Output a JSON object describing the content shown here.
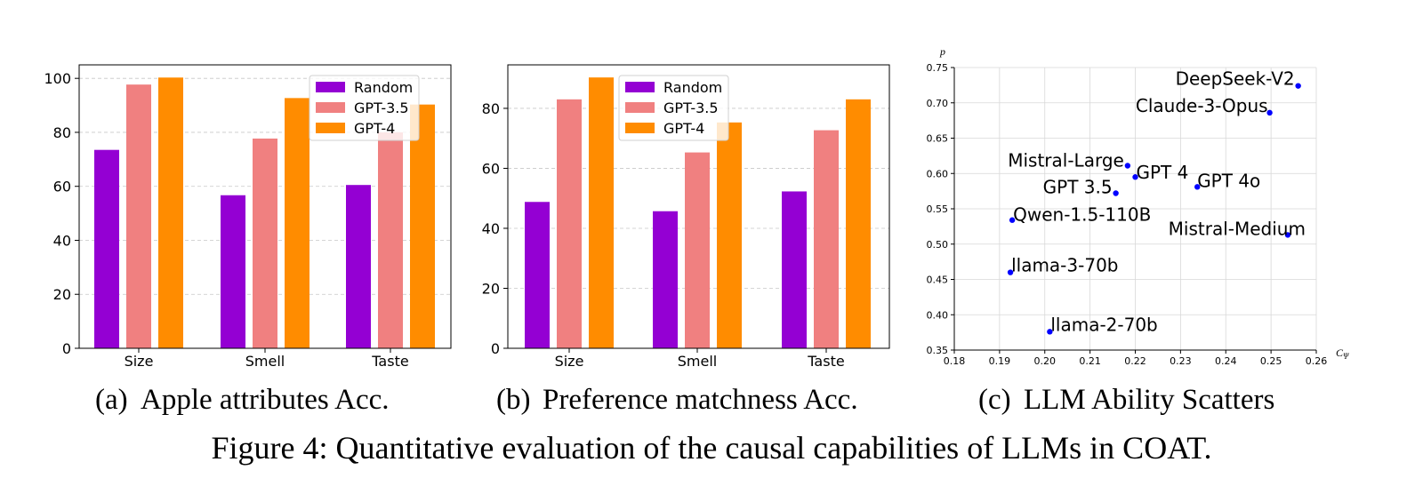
{
  "chart_data": [
    {
      "type": "bar",
      "panel_label": "(a)",
      "caption": "Apple attributes Acc.",
      "categories": [
        "Size",
        "Smell",
        "Taste"
      ],
      "series": [
        {
          "name": "Random",
          "color": "#9400d3",
          "values": [
            73.5,
            56.7,
            60.5
          ]
        },
        {
          "name": "GPT-3.5",
          "color": "#f08080",
          "values": [
            97.7,
            77.7,
            80.0
          ]
        },
        {
          "name": "GPT-4",
          "color": "#ff8c00",
          "values": [
            100.3,
            92.7,
            90.3
          ]
        }
      ],
      "yticks": [
        "0",
        "20",
        "40",
        "60",
        "80",
        "100"
      ],
      "ylim": [
        0,
        105
      ],
      "legend": "top-right",
      "grid": "y-dashed"
    },
    {
      "type": "bar",
      "panel_label": "(b)",
      "caption": "Preference matchness Acc.",
      "categories": [
        "Size",
        "Smell",
        "Taste"
      ],
      "series": [
        {
          "name": "Random",
          "color": "#9400d3",
          "values": [
            48.8,
            45.7,
            52.3
          ]
        },
        {
          "name": "GPT-3.5",
          "color": "#f08080",
          "values": [
            83.0,
            65.3,
            72.7
          ]
        },
        {
          "name": "GPT-4",
          "color": "#ff8c00",
          "values": [
            90.3,
            75.3,
            83.0
          ]
        }
      ],
      "yticks": [
        "0",
        "20",
        "40",
        "60",
        "80"
      ],
      "ylim": [
        0,
        94.5
      ],
      "legend": "top-center",
      "grid": "y-dashed"
    },
    {
      "type": "scatter",
      "panel_label": "(c)",
      "caption": "LLM Ability Scatters",
      "xlabel": "C",
      "xlabel_sub": "Ψ",
      "ylabel": "p",
      "xlim": [
        0.18,
        0.26
      ],
      "ylim": [
        0.35,
        0.75
      ],
      "xticks": [
        "0.18",
        "0.19",
        "0.20",
        "0.21",
        "0.22",
        "0.23",
        "0.24",
        "0.25",
        "0.26"
      ],
      "yticks": [
        "0.35",
        "0.40",
        "0.45",
        "0.50",
        "0.55",
        "0.60",
        "0.65",
        "0.70",
        "0.75"
      ],
      "point_color": "#0000ff",
      "points": [
        {
          "label": "DeepSeek-V2",
          "x": 0.256,
          "y": 0.724
        },
        {
          "label": "Claude-3-Opus",
          "x": 0.2497,
          "y": 0.686
        },
        {
          "label": "Mistral-Large",
          "x": 0.2183,
          "y": 0.611
        },
        {
          "label": "GPT 4",
          "x": 0.22,
          "y": 0.595
        },
        {
          "label": "GPT 3.5",
          "x": 0.2157,
          "y": 0.572
        },
        {
          "label": "GPT 4o",
          "x": 0.2337,
          "y": 0.581
        },
        {
          "label": "Qwen-1.5-110B",
          "x": 0.1928,
          "y": 0.534
        },
        {
          "label": "Mistral-Medium",
          "x": 0.2537,
          "y": 0.513
        },
        {
          "label": "llama-3-70b",
          "x": 0.1924,
          "y": 0.46
        },
        {
          "label": "llama-2-70b",
          "x": 0.2011,
          "y": 0.376
        }
      ],
      "grid": "both"
    }
  ],
  "figure_caption": "Figure 4: Quantitative evaluation of the causal capabilities of LLMs in COAT."
}
